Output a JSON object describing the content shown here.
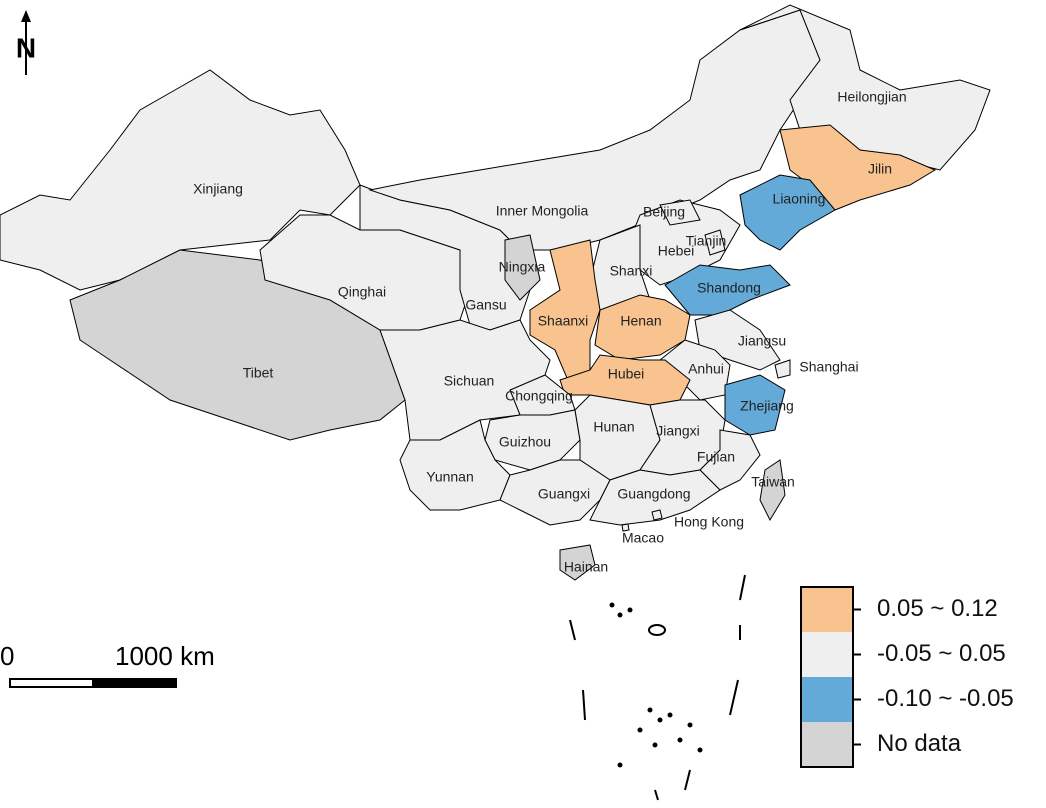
{
  "north": "N",
  "scale_bar": {
    "start": "0",
    "end": "1000 km"
  },
  "legend": [
    {
      "label": "0.05 ~ 0.12",
      "color": "#f9c38f"
    },
    {
      "label": "-0.05 ~ 0.05",
      "color": "#efefef"
    },
    {
      "label": "-0.10 ~ -0.05",
      "color": "#63aad9"
    },
    {
      "label": "No data",
      "color": "#d4d4d4"
    }
  ],
  "regions": [
    {
      "name": "Xinjiang",
      "class": 1
    },
    {
      "name": "Tibet",
      "class": 3
    },
    {
      "name": "Qinghai",
      "class": 1
    },
    {
      "name": "Gansu",
      "class": 1
    },
    {
      "name": "Inner Mongolia",
      "class": 1
    },
    {
      "name": "Heilongjian",
      "class": 1
    },
    {
      "name": "Jilin",
      "class": 0
    },
    {
      "name": "Liaoning",
      "class": 2
    },
    {
      "name": "Hebei",
      "class": 1
    },
    {
      "name": "Beijing",
      "class": 1
    },
    {
      "name": "Tianjin",
      "class": 1
    },
    {
      "name": "Shanxi",
      "class": 1
    },
    {
      "name": "Ningxia",
      "class": 3
    },
    {
      "name": "Shaanxi",
      "class": 0
    },
    {
      "name": "Henan",
      "class": 0
    },
    {
      "name": "Shandong",
      "class": 2
    },
    {
      "name": "Jiangsu",
      "class": 1
    },
    {
      "name": "Anhui",
      "class": 1
    },
    {
      "name": "Shanghai",
      "class": 1
    },
    {
      "name": "Zhejiang",
      "class": 2
    },
    {
      "name": "Hubei",
      "class": 0
    },
    {
      "name": "Chongqing",
      "class": 1
    },
    {
      "name": "Sichuan",
      "class": 1
    },
    {
      "name": "Guizhou",
      "class": 1
    },
    {
      "name": "Yunnan",
      "class": 1
    },
    {
      "name": "Hunan",
      "class": 1
    },
    {
      "name": "Jiangxi",
      "class": 1
    },
    {
      "name": "Fujian",
      "class": 1
    },
    {
      "name": "Guangxi",
      "class": 1
    },
    {
      "name": "Guangdong",
      "class": 1
    },
    {
      "name": "Hainan",
      "class": 3
    },
    {
      "name": "Taiwan",
      "class": 3
    },
    {
      "name": "Hong Kong",
      "class": 1
    },
    {
      "name": "Macao",
      "class": 1
    }
  ]
}
